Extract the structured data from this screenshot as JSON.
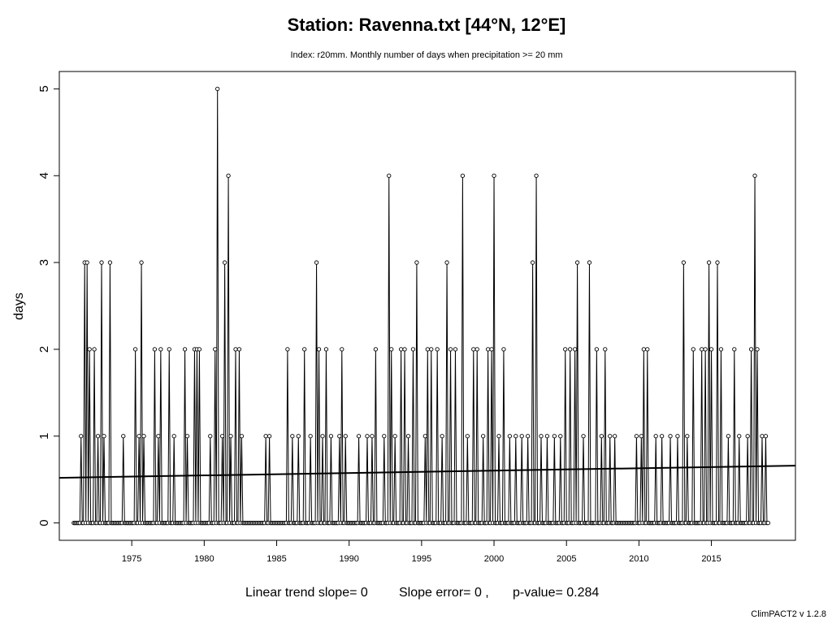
{
  "chart_data": {
    "type": "line",
    "title": "Station: Ravenna.txt [44°N, 12°E]",
    "subtitle": "Index: r20mm. Monthly number of days when precipitation >= 20 mm",
    "ylabel": "days",
    "xlabel": "",
    "x_ticks": [
      "1975",
      "1980",
      "1985",
      "1990",
      "1995",
      "2000",
      "2005",
      "2010",
      "2015"
    ],
    "y_ticks": [
      "0",
      "1",
      "2",
      "3",
      "4",
      "5"
    ],
    "xlim": [
      1970.0,
      2020.8
    ],
    "ylim": [
      -0.2,
      5.2
    ],
    "grid": false,
    "legend": "none",
    "start": [
      1971,
      1
    ],
    "peaks": [
      [
        1971.5,
        1
      ],
      [
        1971.75,
        3
      ],
      [
        1971.92,
        3
      ],
      [
        1972.08,
        2
      ],
      [
        1972.42,
        2
      ],
      [
        1972.67,
        1
      ],
      [
        1972.92,
        3
      ],
      [
        1973.08,
        1
      ],
      [
        1973.5,
        3
      ],
      [
        1974.42,
        1
      ],
      [
        1975.25,
        2
      ],
      [
        1975.5,
        1
      ],
      [
        1975.67,
        3
      ],
      [
        1975.83,
        1
      ],
      [
        1976.58,
        2
      ],
      [
        1976.83,
        1
      ],
      [
        1977.0,
        2
      ],
      [
        1977.58,
        2
      ],
      [
        1977.92,
        1
      ],
      [
        1978.67,
        2
      ],
      [
        1978.83,
        1
      ],
      [
        1979.33,
        2
      ],
      [
        1979.5,
        2
      ],
      [
        1979.67,
        2
      ],
      [
        1980.42,
        1
      ],
      [
        1980.75,
        2
      ],
      [
        1980.92,
        5
      ],
      [
        1981.25,
        1
      ],
      [
        1981.42,
        3
      ],
      [
        1981.67,
        4
      ],
      [
        1981.83,
        1
      ],
      [
        1982.17,
        2
      ],
      [
        1982.42,
        2
      ],
      [
        1982.58,
        1
      ],
      [
        1984.25,
        1
      ],
      [
        1984.5,
        1
      ],
      [
        1985.75,
        2
      ],
      [
        1986.08,
        1
      ],
      [
        1986.5,
        1
      ],
      [
        1986.92,
        2
      ],
      [
        1987.33,
        1
      ],
      [
        1987.75,
        3
      ],
      [
        1987.92,
        2
      ],
      [
        1988.17,
        1
      ],
      [
        1988.42,
        2
      ],
      [
        1988.75,
        1
      ],
      [
        1989.33,
        1
      ],
      [
        1989.5,
        2
      ],
      [
        1989.75,
        1
      ],
      [
        1990.67,
        1
      ],
      [
        1991.25,
        1
      ],
      [
        1991.58,
        1
      ],
      [
        1991.83,
        2
      ],
      [
        1992.42,
        1
      ],
      [
        1992.75,
        4
      ],
      [
        1992.92,
        2
      ],
      [
        1993.17,
        1
      ],
      [
        1993.58,
        2
      ],
      [
        1993.83,
        2
      ],
      [
        1994.08,
        1
      ],
      [
        1994.42,
        2
      ],
      [
        1994.67,
        3
      ],
      [
        1995.25,
        1
      ],
      [
        1995.42,
        2
      ],
      [
        1995.67,
        2
      ],
      [
        1996.08,
        2
      ],
      [
        1996.42,
        1
      ],
      [
        1996.75,
        3
      ],
      [
        1997.0,
        2
      ],
      [
        1997.33,
        2
      ],
      [
        1997.83,
        4
      ],
      [
        1998.17,
        1
      ],
      [
        1998.58,
        2
      ],
      [
        1998.83,
        2
      ],
      [
        1999.25,
        1
      ],
      [
        1999.58,
        2
      ],
      [
        1999.83,
        2
      ],
      [
        2000.0,
        4
      ],
      [
        2000.33,
        1
      ],
      [
        2000.67,
        2
      ],
      [
        2001.08,
        1
      ],
      [
        2001.5,
        1
      ],
      [
        2001.92,
        1
      ],
      [
        2002.33,
        1
      ],
      [
        2002.67,
        3
      ],
      [
        2002.92,
        4
      ],
      [
        2003.25,
        1
      ],
      [
        2003.67,
        1
      ],
      [
        2004.17,
        1
      ],
      [
        2004.58,
        1
      ],
      [
        2004.92,
        2
      ],
      [
        2005.25,
        2
      ],
      [
        2005.58,
        2
      ],
      [
        2005.75,
        3
      ],
      [
        2006.17,
        1
      ],
      [
        2006.58,
        3
      ],
      [
        2007.08,
        2
      ],
      [
        2007.42,
        1
      ],
      [
        2007.67,
        2
      ],
      [
        2008.0,
        1
      ],
      [
        2008.33,
        1
      ],
      [
        2009.83,
        1
      ],
      [
        2010.17,
        1
      ],
      [
        2010.33,
        2
      ],
      [
        2010.58,
        2
      ],
      [
        2011.17,
        1
      ],
      [
        2011.58,
        1
      ],
      [
        2012.17,
        1
      ],
      [
        2012.67,
        1
      ],
      [
        2013.08,
        3
      ],
      [
        2013.33,
        1
      ],
      [
        2013.75,
        2
      ],
      [
        2014.33,
        2
      ],
      [
        2014.58,
        2
      ],
      [
        2014.83,
        3
      ],
      [
        2015.0,
        2
      ],
      [
        2015.42,
        3
      ],
      [
        2015.67,
        2
      ],
      [
        2016.17,
        1
      ],
      [
        2016.58,
        2
      ],
      [
        2016.92,
        1
      ],
      [
        2017.5,
        1
      ],
      [
        2017.75,
        2
      ],
      [
        2018.0,
        4
      ],
      [
        2018.17,
        2
      ],
      [
        2018.5,
        1
      ],
      [
        2018.75,
        1
      ]
    ],
    "end": [
      2018,
      12
    ],
    "trend": {
      "from": [
        1970.0,
        0.52
      ],
      "to": [
        2020.8,
        0.66
      ]
    }
  },
  "footer": {
    "slope": "Linear trend slope= 0",
    "error": "Slope error= 0 ,",
    "pvalue": "p-value= 0.284"
  },
  "version": "ClimPACT2 v 1.2.8"
}
